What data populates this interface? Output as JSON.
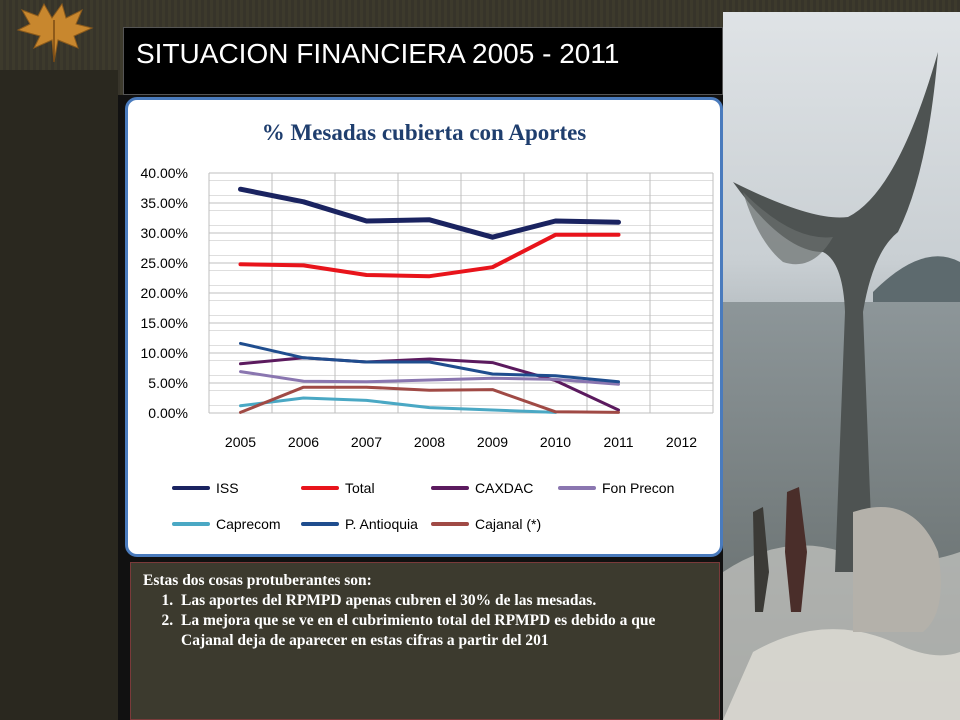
{
  "slide": {
    "title": "SITUACION FINANCIERA 2005 - 2011",
    "note_heading": "Estas dos cosas protuberantes son:",
    "note_items": [
      "Las aportes del RPMPD apenas cubren el 30% de las mesadas.",
      "La mejora que se ve en el cubrimiento total del RPMPD es debido a que Cajanal deja de aparecer en estas cifras a partir del 201"
    ]
  },
  "chart_data": {
    "type": "line",
    "title": "% Mesadas cubierta con Aportes",
    "x": [
      "2005",
      "2006",
      "2007",
      "2008",
      "2009",
      "2010",
      "2011",
      "2012"
    ],
    "y_ticks": [
      "40.00%",
      "35.00%",
      "30.00%",
      "25.00%",
      "20.00%",
      "15.00%",
      "10.00%",
      "5.00%",
      "0.00%"
    ],
    "ylim": [
      0,
      40
    ],
    "grid": true,
    "legend_position": "bottom",
    "series": [
      {
        "name": "ISS",
        "color": "#1a2360",
        "width": 5,
        "values": [
          37.3,
          35.2,
          32.0,
          32.2,
          29.3,
          32.0,
          31.8,
          null
        ]
      },
      {
        "name": "Total",
        "color": "#e8141b",
        "width": 4,
        "values": [
          24.8,
          24.6,
          23.0,
          22.8,
          24.3,
          29.7,
          29.7,
          null
        ]
      },
      {
        "name": "CAXDAC",
        "color": "#5b1a5e",
        "width": 3,
        "values": [
          8.2,
          9.2,
          8.5,
          9.0,
          8.4,
          5.4,
          0.5,
          null
        ]
      },
      {
        "name": "Fon Precon",
        "color": "#8a76b0",
        "width": 3,
        "values": [
          6.9,
          5.3,
          5.2,
          5.5,
          5.8,
          5.6,
          4.8,
          null
        ]
      },
      {
        "name": "Caprecom",
        "color": "#4aa8c4",
        "width": 3,
        "values": [
          1.2,
          2.5,
          2.1,
          0.9,
          0.5,
          0.1,
          null,
          null
        ]
      },
      {
        "name": "P. Antioquia",
        "color": "#1f4d8e",
        "width": 3,
        "values": [
          11.6,
          9.2,
          8.5,
          8.5,
          6.5,
          6.2,
          5.2,
          null
        ]
      },
      {
        "name": "Cajanal (*)",
        "color": "#a04a45",
        "width": 3,
        "values": [
          0.1,
          4.3,
          4.3,
          3.8,
          3.9,
          0.2,
          0.1,
          null
        ]
      }
    ]
  },
  "colors": {
    "title_bar": "#000000",
    "chart_border": "#4a7bbd",
    "note_text": "#ffffff"
  }
}
